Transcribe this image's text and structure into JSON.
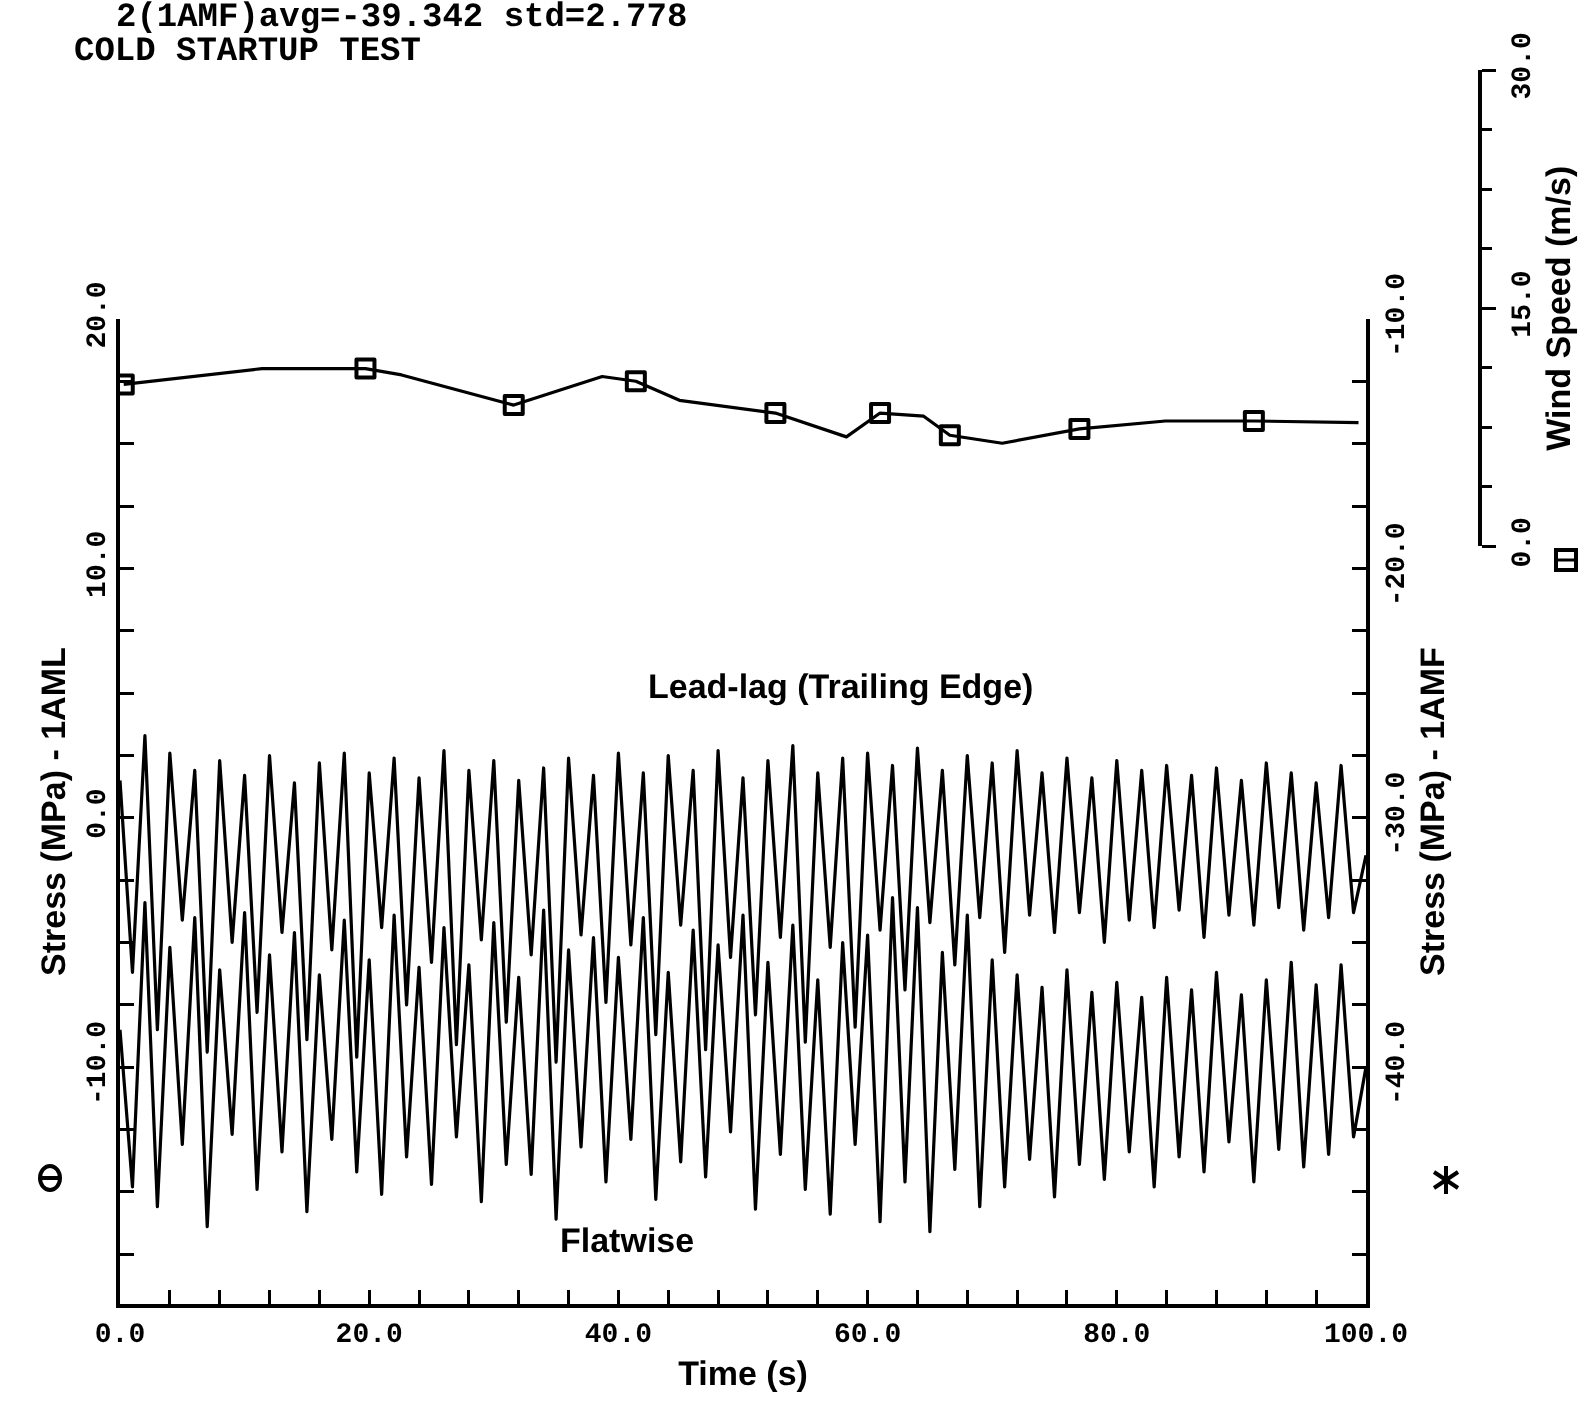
{
  "chart_data": {
    "type": "line",
    "title": "2(1AMF)avg=-39.342 std=2.778",
    "subtitle": "COLD STARTUP TEST",
    "xlabel": "Time (s)",
    "ylabel": "Stress (MPa) - 1AML",
    "y2label": "Stress (MPa) - 1AMF",
    "y3label": "Wind Speed (m/s)",
    "x": [
      0,
      1,
      2,
      3,
      4,
      5,
      6,
      7,
      8,
      9,
      10,
      11,
      12,
      13,
      14,
      15,
      16,
      17,
      18,
      19,
      20,
      21,
      22,
      23,
      24,
      25,
      26,
      27,
      28,
      29,
      30,
      31,
      32,
      33,
      34,
      35,
      36,
      37,
      38,
      39,
      40,
      41,
      42,
      43,
      44,
      45,
      46,
      47,
      48,
      49,
      50,
      51,
      52,
      53,
      54,
      55,
      56,
      57,
      58,
      59,
      60,
      61,
      62,
      63,
      64,
      65,
      66,
      67,
      68,
      69,
      70,
      71,
      72,
      73,
      74,
      75,
      76,
      77,
      78,
      79,
      80,
      81,
      82,
      83,
      84,
      85,
      86,
      87,
      88,
      89,
      90,
      91,
      92,
      93,
      94,
      95,
      96,
      97,
      98,
      99,
      100
    ],
    "xlim": [
      0,
      100
    ],
    "xticks": [
      {
        "value": 0,
        "label": "0.0"
      },
      {
        "value": 4,
        "label": null
      },
      {
        "value": 8,
        "label": null
      },
      {
        "value": 12,
        "label": null
      },
      {
        "value": 16,
        "label": null
      },
      {
        "value": 20,
        "label": "20.0"
      },
      {
        "value": 24,
        "label": null
      },
      {
        "value": 28,
        "label": null
      },
      {
        "value": 32,
        "label": null
      },
      {
        "value": 36,
        "label": null
      },
      {
        "value": 40,
        "label": "40.0"
      },
      {
        "value": 44,
        "label": null
      },
      {
        "value": 48,
        "label": null
      },
      {
        "value": 52,
        "label": null
      },
      {
        "value": 56,
        "label": null
      },
      {
        "value": 60,
        "label": "60.0"
      },
      {
        "value": 64,
        "label": null
      },
      {
        "value": 68,
        "label": null
      },
      {
        "value": 72,
        "label": null
      },
      {
        "value": 76,
        "label": null
      },
      {
        "value": 80,
        "label": "80.0"
      },
      {
        "value": 84,
        "label": null
      },
      {
        "value": 88,
        "label": null
      },
      {
        "value": 92,
        "label": null
      },
      {
        "value": 96,
        "label": null
      },
      {
        "value": 100,
        "label": "100.0"
      }
    ],
    "ylim": [
      -19.5,
      20
    ],
    "yticks": [
      {
        "value": 20,
        "label": "20.0"
      },
      {
        "value": 17.5,
        "label": null
      },
      {
        "value": 15,
        "label": null
      },
      {
        "value": 12.5,
        "label": null
      },
      {
        "value": 10,
        "label": "10.0"
      },
      {
        "value": 7.5,
        "label": null
      },
      {
        "value": 5,
        "label": null
      },
      {
        "value": 2.5,
        "label": null
      },
      {
        "value": 0,
        "label": "0.0"
      },
      {
        "value": -2.5,
        "label": null
      },
      {
        "value": -5,
        "label": null
      },
      {
        "value": -7.5,
        "label": null
      },
      {
        "value": -10,
        "label": "-10.0"
      },
      {
        "value": -12.5,
        "label": null
      },
      {
        "value": -15,
        "label": null
      },
      {
        "value": -17.5,
        "label": null
      }
    ],
    "y2lim": [
      -49.5,
      -10
    ],
    "y2ticks": [
      {
        "value": -10,
        "label": "-10.0"
      },
      {
        "value": -12.5,
        "label": null
      },
      {
        "value": -15,
        "label": null
      },
      {
        "value": -17.5,
        "label": null
      },
      {
        "value": -20,
        "label": "-20.0"
      },
      {
        "value": -22.5,
        "label": null
      },
      {
        "value": -25,
        "label": null
      },
      {
        "value": -27.5,
        "label": null
      },
      {
        "value": -30,
        "label": "-30.0"
      },
      {
        "value": -32.5,
        "label": null
      },
      {
        "value": -35,
        "label": null
      },
      {
        "value": -37.5,
        "label": null
      },
      {
        "value": -40,
        "label": "-40.0"
      },
      {
        "value": -42.5,
        "label": null
      },
      {
        "value": -45,
        "label": null
      },
      {
        "value": -47.5,
        "label": null
      }
    ],
    "y3lim": [
      0,
      30
    ],
    "y3ticks": [
      {
        "value": 0,
        "label": "0.0"
      },
      {
        "value": 15,
        "label": "15.0"
      },
      {
        "value": 30,
        "label": "30.0"
      }
    ],
    "series": [
      {
        "name": "Lead-lag (Trailing Edge)",
        "color": "#000000",
        "values": [
          1.5,
          -6.2,
          3.3,
          -8.5,
          2.6,
          -4.1,
          1.9,
          -9.4,
          2.3,
          -5.0,
          1.7,
          -7.8,
          2.5,
          -4.6,
          1.4,
          -8.9,
          2.2,
          -5.3,
          2.6,
          -9.6,
          1.8,
          -4.4,
          2.4,
          -7.5,
          1.6,
          -5.8,
          2.7,
          -9.1,
          1.9,
          -4.9,
          2.3,
          -8.2,
          1.5,
          -5.5,
          2.0,
          -9.8,
          2.4,
          -4.7,
          1.7,
          -7.4,
          2.6,
          -5.1,
          1.8,
          -8.7,
          2.5,
          -4.3,
          1.9,
          -9.3,
          2.7,
          -5.6,
          1.6,
          -7.9,
          2.3,
          -4.8,
          2.9,
          -9.0,
          1.8,
          -5.2,
          2.4,
          -8.4,
          2.6,
          -4.5,
          2.1,
          -6.9,
          2.8,
          -4.2,
          1.9,
          -5.9,
          2.5,
          -4.0,
          2.2,
          -5.4,
          2.7,
          -3.9,
          1.8,
          -4.6,
          2.4,
          -3.8,
          1.6,
          -5.0,
          2.3,
          -4.1,
          1.9,
          -4.4,
          2.1,
          -3.7,
          1.7,
          -4.8,
          2.0,
          -3.9,
          1.5,
          -4.3,
          2.2,
          -3.6,
          1.8,
          -4.5,
          1.4,
          -4.0,
          2.1,
          -3.8,
          -1.5
        ]
      },
      {
        "name": "Flatwise",
        "color": "#000000",
        "axis": "y2",
        "values": [
          -38.5,
          -44.8,
          -33.4,
          -45.6,
          -35.2,
          -43.1,
          -34.0,
          -46.4,
          -36.1,
          -42.7,
          -33.8,
          -44.9,
          -35.5,
          -43.4,
          -34.6,
          -45.8,
          -36.3,
          -42.9,
          -34.1,
          -44.2,
          -35.7,
          -45.1,
          -33.9,
          -43.6,
          -36.0,
          -44.7,
          -34.4,
          -42.8,
          -35.9,
          -45.4,
          -34.2,
          -43.9,
          -36.4,
          -44.3,
          -33.7,
          -46.1,
          -35.3,
          -43.2,
          -34.8,
          -44.6,
          -35.6,
          -42.9,
          -34.0,
          -45.3,
          -36.2,
          -43.8,
          -34.5,
          -44.4,
          -35.1,
          -42.6,
          -33.9,
          -45.7,
          -35.8,
          -43.5,
          -34.3,
          -44.9,
          -36.5,
          -45.9,
          -35.0,
          -43.1,
          -34.7,
          -46.2,
          -33.2,
          -44.6,
          -33.6,
          -46.6,
          -35.4,
          -44.1,
          -33.9,
          -45.6,
          -35.7,
          -44.8,
          -36.3,
          -43.7,
          -36.8,
          -45.2,
          -36.1,
          -43.9,
          -37.0,
          -44.5,
          -36.6,
          -43.4,
          -37.2,
          -44.8,
          -36.4,
          -43.6,
          -36.9,
          -44.2,
          -36.2,
          -43.0,
          -37.1,
          -44.6,
          -36.5,
          -43.3,
          -35.8,
          -44.0,
          -36.7,
          -43.5,
          -35.9,
          -42.8,
          -40.0
        ]
      },
      {
        "color": "#000000",
        "axis": "y3",
        "marker": "square",
        "x": [
          0.3,
          11.4,
          19.7,
          22.6,
          31.6,
          38.7,
          41.4,
          44.9,
          52.6,
          58.3,
          61.0,
          64.5,
          66.6,
          70.8,
          77.0,
          83.9,
          91.0,
          99.4
        ],
        "values": [
          10.2,
          11.2,
          11.2,
          10.8,
          8.9,
          10.7,
          10.4,
          9.2,
          8.4,
          6.9,
          8.4,
          8.2,
          7.0,
          6.5,
          7.4,
          7.9,
          7.9,
          7.8
        ]
      }
    ]
  }
}
